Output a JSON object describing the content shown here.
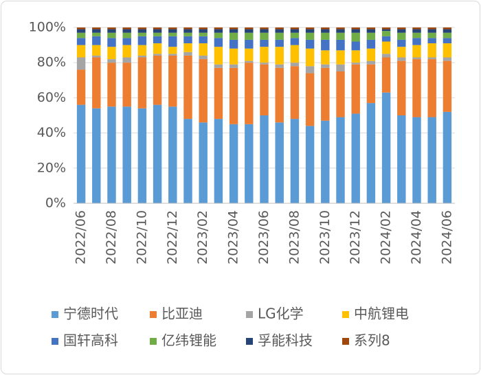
{
  "chart_data": {
    "type": "stacked_bar",
    "categories": [
      "2022/06",
      null,
      "2022/08",
      null,
      "2022/10",
      null,
      "2022/12",
      null,
      "2023/02",
      null,
      "2023/04",
      null,
      "2023/06",
      null,
      "2023/08",
      null,
      "2023/10",
      null,
      "2023/12",
      null,
      "2024/02",
      null,
      "2024/04",
      null,
      "2024/06"
    ],
    "series": [
      {
        "name": "宁德时代",
        "color": "#5b9bd5",
        "values": [
          56,
          54,
          55,
          55,
          54,
          56,
          55,
          48,
          46,
          48,
          45,
          45,
          50,
          46,
          48,
          44,
          47,
          49,
          51,
          57,
          63,
          50,
          49,
          49,
          52
        ]
      },
      {
        "name": "比亚迪",
        "color": "#ed7d31",
        "values": [
          20,
          29,
          25,
          25,
          29,
          28,
          29,
          36,
          36,
          29,
          32,
          35,
          29,
          31,
          30,
          30,
          30,
          26,
          28,
          22,
          20,
          31,
          33,
          33,
          29
        ]
      },
      {
        "name": "LG化学",
        "color": "#a5a5a5",
        "values": [
          7,
          1,
          2,
          3,
          1,
          1,
          1,
          2,
          2,
          2,
          2,
          1,
          1,
          2,
          2,
          4,
          2,
          4,
          1,
          2,
          2,
          2,
          1,
          1,
          2
        ]
      },
      {
        "name": "中航锂电",
        "color": "#ffc000",
        "values": [
          7,
          6,
          7,
          7,
          6,
          6,
          4,
          5,
          7,
          10,
          9,
          7,
          9,
          10,
          10,
          10,
          8,
          8,
          7,
          7,
          7,
          6,
          7,
          8,
          8
        ]
      },
      {
        "name": "国轩高科",
        "color": "#4472c4",
        "values": [
          4,
          5,
          5,
          4,
          5,
          4,
          6,
          4,
          4,
          5,
          5,
          5,
          4,
          4,
          4,
          5,
          6,
          6,
          5,
          5,
          3,
          4,
          4,
          3,
          3
        ]
      },
      {
        "name": "亿纬锂能",
        "color": "#70ad47",
        "values": [
          3,
          2,
          3,
          3,
          2,
          2,
          2,
          2,
          2,
          3,
          4,
          4,
          4,
          4,
          3,
          4,
          4,
          4,
          5,
          4,
          3,
          4,
          3,
          3,
          3
        ]
      },
      {
        "name": "孚能科技",
        "color": "#264478",
        "values": [
          2,
          2,
          2,
          2,
          2,
          2,
          2,
          2,
          2,
          2,
          2,
          2,
          2,
          2,
          2,
          2,
          2,
          2,
          2,
          2,
          1,
          2,
          2,
          2,
          2
        ]
      },
      {
        "name": "系列8",
        "color": "#9e480e",
        "values": [
          1,
          1,
          1,
          1,
          1,
          1,
          1,
          1,
          1,
          1,
          1,
          1,
          1,
          1,
          1,
          1,
          1,
          1,
          1,
          1,
          1,
          1,
          1,
          1,
          1
        ]
      }
    ],
    "ylim": [
      0,
      100
    ],
    "yticks": [
      {
        "value": 0,
        "label": "0%"
      },
      {
        "value": 20,
        "label": "20%"
      },
      {
        "value": 40,
        "label": "40%"
      },
      {
        "value": 60,
        "label": "60%"
      },
      {
        "value": 80,
        "label": "80%"
      },
      {
        "value": 100,
        "label": "100%"
      }
    ],
    "grid": true
  }
}
